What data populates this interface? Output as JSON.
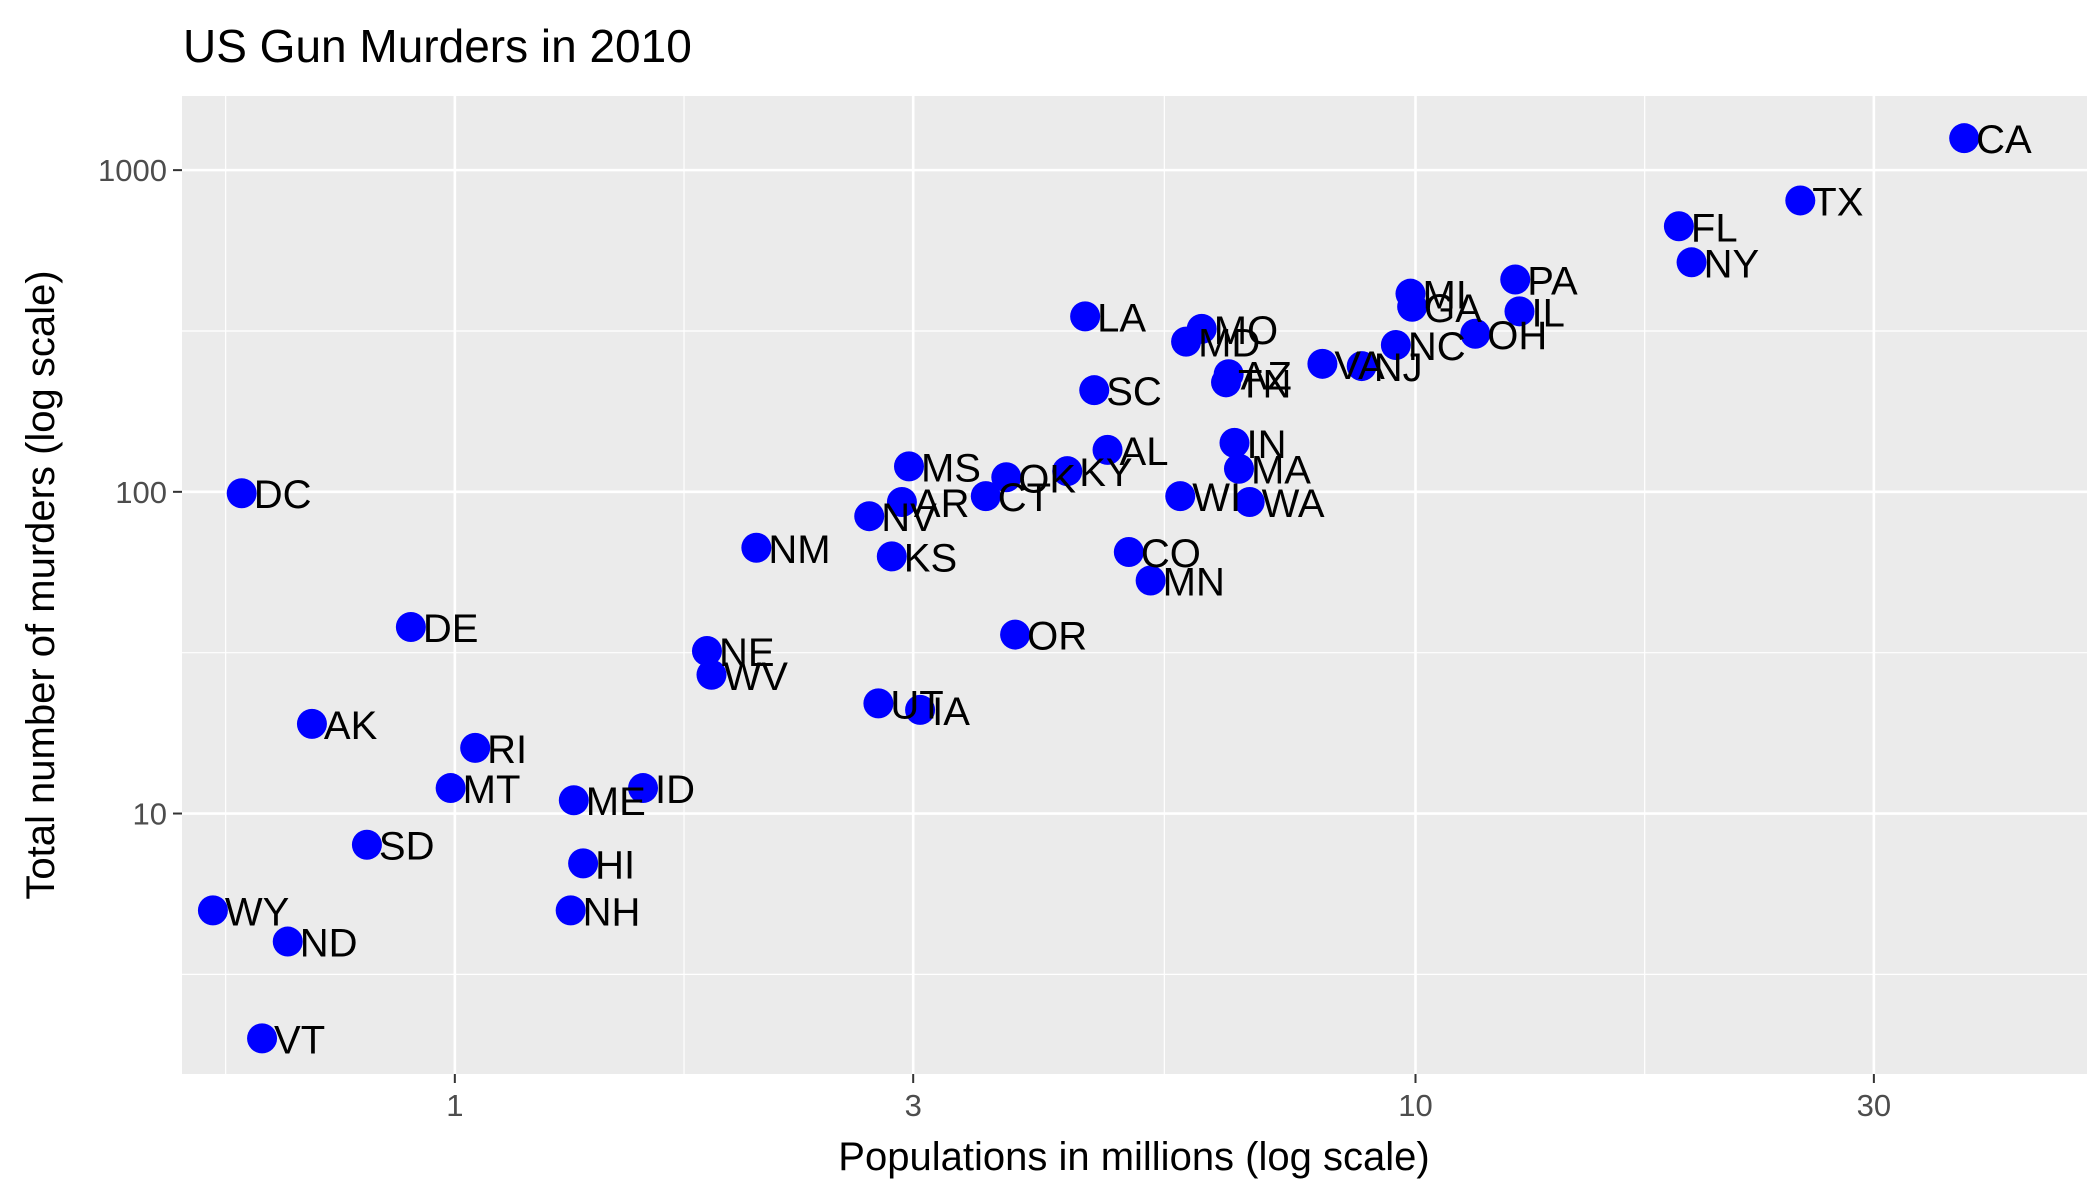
{
  "chart_data": {
    "type": "scatter",
    "title": "US Gun Murders in 2010",
    "xlabel": "Populations in millions (log scale)",
    "ylabel": "Total number of murders (log scale)",
    "x_scale": "log10",
    "y_scale": "log10",
    "xlim": [
      0.52,
      50
    ],
    "ylim": [
      1.55,
      1700
    ],
    "x_ticks": [
      1,
      3,
      10,
      30
    ],
    "x_tick_labels": [
      "1",
      "3",
      "10",
      "30"
    ],
    "y_ticks": [
      10,
      100,
      1000
    ],
    "y_tick_labels": [
      "10",
      "100",
      "1000"
    ],
    "grid": true,
    "panel_background": "#ebebeb",
    "grid_color": "#ffffff",
    "point_color": "#0000ff",
    "points": [
      {
        "label": "CA",
        "x": 37.25,
        "y": 1257
      },
      {
        "label": "TX",
        "x": 25.15,
        "y": 805
      },
      {
        "label": "FL",
        "x": 18.8,
        "y": 669
      },
      {
        "label": "NY",
        "x": 19.38,
        "y": 517
      },
      {
        "label": "PA",
        "x": 12.7,
        "y": 457
      },
      {
        "label": "MI",
        "x": 9.88,
        "y": 413
      },
      {
        "label": "GA",
        "x": 9.92,
        "y": 376
      },
      {
        "label": "IL",
        "x": 12.83,
        "y": 364
      },
      {
        "label": "LA",
        "x": 4.53,
        "y": 351
      },
      {
        "label": "MO",
        "x": 5.99,
        "y": 321
      },
      {
        "label": "MD",
        "x": 5.77,
        "y": 293
      },
      {
        "label": "OH",
        "x": 11.54,
        "y": 310
      },
      {
        "label": "NC",
        "x": 9.54,
        "y": 286
      },
      {
        "label": "VA",
        "x": 8.0,
        "y": 250
      },
      {
        "label": "NJ",
        "x": 8.79,
        "y": 246
      },
      {
        "label": "AZ",
        "x": 6.39,
        "y": 232
      },
      {
        "label": "TN",
        "x": 6.35,
        "y": 219
      },
      {
        "label": "SC",
        "x": 4.63,
        "y": 207
      },
      {
        "label": "AL",
        "x": 4.78,
        "y": 135
      },
      {
        "label": "IN",
        "x": 6.48,
        "y": 142
      },
      {
        "label": "MA",
        "x": 6.55,
        "y": 118
      },
      {
        "label": "MS",
        "x": 2.97,
        "y": 120
      },
      {
        "label": "KY",
        "x": 4.34,
        "y": 116
      },
      {
        "label": "OK",
        "x": 3.75,
        "y": 111
      },
      {
        "label": "CT",
        "x": 3.57,
        "y": 97
      },
      {
        "label": "AR",
        "x": 2.92,
        "y": 93
      },
      {
        "label": "WI",
        "x": 5.69,
        "y": 97
      },
      {
        "label": "WA",
        "x": 6.72,
        "y": 93
      },
      {
        "label": "DC",
        "x": 0.6,
        "y": 99
      },
      {
        "label": "NV",
        "x": 2.7,
        "y": 84
      },
      {
        "label": "NM",
        "x": 2.06,
        "y": 67
      },
      {
        "label": "KS",
        "x": 2.85,
        "y": 63
      },
      {
        "label": "CO",
        "x": 5.03,
        "y": 65
      },
      {
        "label": "MN",
        "x": 5.3,
        "y": 53
      },
      {
        "label": "DE",
        "x": 0.9,
        "y": 38
      },
      {
        "label": "OR",
        "x": 3.83,
        "y": 36
      },
      {
        "label": "NE",
        "x": 1.83,
        "y": 32
      },
      {
        "label": "WV",
        "x": 1.85,
        "y": 27
      },
      {
        "label": "UT",
        "x": 2.76,
        "y": 22
      },
      {
        "label": "IA",
        "x": 3.05,
        "y": 21
      },
      {
        "label": "AK",
        "x": 0.71,
        "y": 19
      },
      {
        "label": "RI",
        "x": 1.05,
        "y": 16
      },
      {
        "label": "MT",
        "x": 0.99,
        "y": 12
      },
      {
        "label": "ME",
        "x": 1.33,
        "y": 11
      },
      {
        "label": "ID",
        "x": 1.57,
        "y": 12
      },
      {
        "label": "SD",
        "x": 0.81,
        "y": 8
      },
      {
        "label": "HI",
        "x": 1.36,
        "y": 7
      },
      {
        "label": "NH",
        "x": 1.32,
        "y": 5
      },
      {
        "label": "WY",
        "x": 0.56,
        "y": 5
      },
      {
        "label": "ND",
        "x": 0.67,
        "y": 4
      },
      {
        "label": "VT",
        "x": 0.63,
        "y": 2
      }
    ]
  }
}
